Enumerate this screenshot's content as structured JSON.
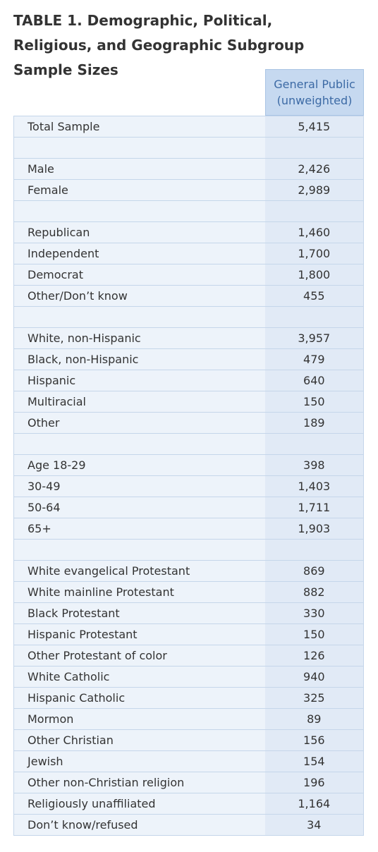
{
  "title": "TABLE 1. Demographic, Political, Religious, and Geographic Subgroup Sample Sizes",
  "table": {
    "header": [
      "General Public",
      "(unweighted)"
    ],
    "groups": [
      [
        [
          "Total Sample",
          "5,415"
        ]
      ],
      [
        [
          "Male",
          "2,426"
        ],
        [
          "Female",
          "2,989"
        ]
      ],
      [
        [
          "Republican",
          "1,460"
        ],
        [
          "Independent",
          "1,700"
        ],
        [
          "Democrat",
          "1,800"
        ],
        [
          "Other/Don’t know",
          "455"
        ]
      ],
      [
        [
          "White, non-Hispanic",
          "3,957"
        ],
        [
          "Black, non-Hispanic",
          "479"
        ],
        [
          "Hispanic",
          "640"
        ],
        [
          "Multiracial",
          "150"
        ],
        [
          "Other",
          "189"
        ]
      ],
      [
        [
          "Age 18-29",
          "398"
        ],
        [
          "30-49",
          "1,403"
        ],
        [
          "50-64",
          "1,711"
        ],
        [
          "65+",
          "1,903"
        ]
      ],
      [
        [
          "White evangelical Protestant",
          "869"
        ],
        [
          "White mainline Protestant",
          "882"
        ],
        [
          "Black Protestant",
          "330"
        ],
        [
          "Hispanic Protestant",
          "150"
        ],
        [
          "Other Protestant of color",
          "126"
        ],
        [
          "White Catholic",
          "940"
        ],
        [
          "Hispanic Catholic",
          "325"
        ],
        [
          "Mormon",
          "89"
        ],
        [
          "Other Christian",
          "156"
        ],
        [
          "Jewish",
          "154"
        ],
        [
          "Other non-Christian religion",
          "196"
        ],
        [
          "Religiously unaffiliated",
          "1,164"
        ],
        [
          "Don’t know/refused",
          "34"
        ]
      ]
    ]
  }
}
